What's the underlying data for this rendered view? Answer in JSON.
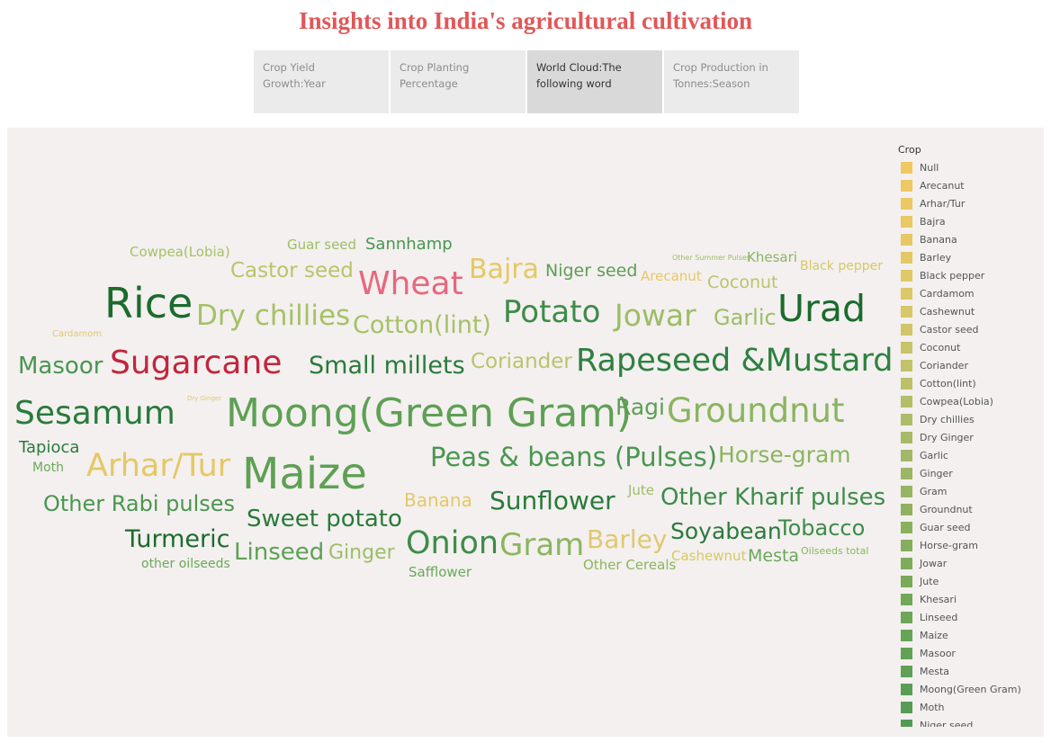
{
  "page_title": "Insights into India's agricultural cultivation",
  "tabs": [
    {
      "label": "Crop Yield Growth:Year",
      "active": false
    },
    {
      "label": "Crop Planting Percentage",
      "active": false
    },
    {
      "label": "World Cloud:The following word",
      "active": true
    },
    {
      "label": "Crop Production in Tonnes:Season",
      "active": false
    }
  ],
  "chart_data": {
    "type": "word_cloud",
    "legend_title": "Crop",
    "legend_placement": "right",
    "words": [
      {
        "text": "Cowpea(Lobia)",
        "weight": 15,
        "color": "#a6c166"
      },
      {
        "text": "Guar seed",
        "weight": 15,
        "color": "#9dbd67"
      },
      {
        "text": "Sannhamp",
        "weight": 18,
        "color": "#4a9650"
      },
      {
        "text": "Other Summer Pulses",
        "weight": 8,
        "color": "#9dbd67"
      },
      {
        "text": "Khesari",
        "weight": 15,
        "color": "#8bb55e"
      },
      {
        "text": "Black pepper",
        "weight": 14,
        "color": "#d6c865"
      },
      {
        "text": "Castor seed",
        "weight": 23,
        "color": "#b8c56a"
      },
      {
        "text": "Wheat",
        "weight": 36,
        "color": "#e8677e"
      },
      {
        "text": "Bajra",
        "weight": 30,
        "color": "#e5c865"
      },
      {
        "text": "Niger seed",
        "weight": 19,
        "color": "#5e9e55"
      },
      {
        "text": "Arecanut",
        "weight": 15,
        "color": "#e5c865"
      },
      {
        "text": "Coconut",
        "weight": 19,
        "color": "#b8c56a"
      },
      {
        "text": "Rice",
        "weight": 46,
        "color": "#1c6b2d"
      },
      {
        "text": "Dry chillies",
        "weight": 31,
        "color": "#a6c166"
      },
      {
        "text": "Cotton(lint)",
        "weight": 27,
        "color": "#a6c166"
      },
      {
        "text": "Potato",
        "weight": 34,
        "color": "#3d8c49"
      },
      {
        "text": "Jowar",
        "weight": 33,
        "color": "#9dbd67"
      },
      {
        "text": "Garlic",
        "weight": 24,
        "color": "#9dbd67"
      },
      {
        "text": "Urad",
        "weight": 41,
        "color": "#1c6b2d"
      },
      {
        "text": "Cardamom",
        "weight": 10,
        "color": "#e0c870"
      },
      {
        "text": "Masoor",
        "weight": 26,
        "color": "#4a9650"
      },
      {
        "text": "Sugarcane",
        "weight": 36,
        "color": "#c0263e"
      },
      {
        "text": "Small millets",
        "weight": 27,
        "color": "#2a7a3b"
      },
      {
        "text": "Coriander",
        "weight": 23,
        "color": "#b8c56a"
      },
      {
        "text": "Rapeseed &Mustard",
        "weight": 35,
        "color": "#2f8040"
      },
      {
        "text": "Sesamum",
        "weight": 36,
        "color": "#2a7a3b"
      },
      {
        "text": "Dry Ginger",
        "weight": 7,
        "color": "#e5c865"
      },
      {
        "text": "Moong(Green Gram)",
        "weight": 44,
        "color": "#5ea054"
      },
      {
        "text": "Ragi",
        "weight": 25,
        "color": "#5e9e55"
      },
      {
        "text": "Groundnut",
        "weight": 37,
        "color": "#8bb55e"
      },
      {
        "text": "Tapioca",
        "weight": 18,
        "color": "#2a7a3b"
      },
      {
        "text": "Moth",
        "weight": 14,
        "color": "#6aa85a"
      },
      {
        "text": "Arhar/Tur",
        "weight": 35,
        "color": "#e5c865"
      },
      {
        "text": "Maize",
        "weight": 48,
        "color": "#5ea054"
      },
      {
        "text": "Peas & beans (Pulses)",
        "weight": 29,
        "color": "#4a9650"
      },
      {
        "text": "Horse-gram",
        "weight": 25,
        "color": "#8bb55e"
      },
      {
        "text": "Other Rabi pulses",
        "weight": 24,
        "color": "#4a9650"
      },
      {
        "text": "Banana",
        "weight": 20,
        "color": "#e5c865"
      },
      {
        "text": "Sunflower",
        "weight": 28,
        "color": "#2a7a3b"
      },
      {
        "text": "Jute",
        "weight": 15,
        "color": "#9dbd67"
      },
      {
        "text": "Other Kharif pulses",
        "weight": 26,
        "color": "#3d8c49"
      },
      {
        "text": "Sweet potato",
        "weight": 26,
        "color": "#2a7a3b"
      },
      {
        "text": "Turmeric",
        "weight": 27,
        "color": "#1c6b2d"
      },
      {
        "text": "Linseed",
        "weight": 26,
        "color": "#5ea054"
      },
      {
        "text": "Ginger",
        "weight": 22,
        "color": "#9dbd67"
      },
      {
        "text": "Onion",
        "weight": 35,
        "color": "#3d8c49"
      },
      {
        "text": "Gram",
        "weight": 34,
        "color": "#8bb55e"
      },
      {
        "text": "Barley",
        "weight": 28,
        "color": "#e0c870"
      },
      {
        "text": "Soyabean",
        "weight": 25,
        "color": "#2a7a3b"
      },
      {
        "text": "Tobacco",
        "weight": 24,
        "color": "#3d8c49"
      },
      {
        "text": "other oilseeds",
        "weight": 14,
        "color": "#6aa85a"
      },
      {
        "text": "Safflower",
        "weight": 15,
        "color": "#6aa85a"
      },
      {
        "text": "Other Cereals",
        "weight": 15,
        "color": "#8bb55e"
      },
      {
        "text": "Cashewnut",
        "weight": 15,
        "color": "#d6c865"
      },
      {
        "text": "Mesta",
        "weight": 19,
        "color": "#6aa85a"
      },
      {
        "text": "Oilseeds total",
        "weight": 11,
        "color": "#8bb55e"
      }
    ],
    "legend": [
      {
        "label": "Null",
        "color": "#f0c860"
      },
      {
        "label": "Arecanut",
        "color": "#eec860"
      },
      {
        "label": "Arhar/Tur",
        "color": "#ecc862"
      },
      {
        "label": "Bajra",
        "color": "#eac862"
      },
      {
        "label": "Banana",
        "color": "#e6c864"
      },
      {
        "label": "Barley",
        "color": "#e4c864"
      },
      {
        "label": "Black pepper",
        "color": "#e0c866"
      },
      {
        "label": "Cardamom",
        "color": "#dcc866"
      },
      {
        "label": "Cashewnut",
        "color": "#d6c866"
      },
      {
        "label": "Castor seed",
        "color": "#d0c668"
      },
      {
        "label": "Coconut",
        "color": "#c8c468"
      },
      {
        "label": "Coriander",
        "color": "#c2c268"
      },
      {
        "label": "Cotton(lint)",
        "color": "#bcc068"
      },
      {
        "label": "Cowpea(Lobia)",
        "color": "#b4be68"
      },
      {
        "label": "Dry chillies",
        "color": "#aebc68"
      },
      {
        "label": "Dry Ginger",
        "color": "#a8ba66"
      },
      {
        "label": "Garlic",
        "color": "#a2b866"
      },
      {
        "label": "Ginger",
        "color": "#9cb664"
      },
      {
        "label": "Gram",
        "color": "#96b462"
      },
      {
        "label": "Groundnut",
        "color": "#90b260"
      },
      {
        "label": "Guar seed",
        "color": "#8ab05e"
      },
      {
        "label": "Horse-gram",
        "color": "#84ae5c"
      },
      {
        "label": "Jowar",
        "color": "#7eac5a"
      },
      {
        "label": "Jute",
        "color": "#78aa58"
      },
      {
        "label": "Khesari",
        "color": "#72a858"
      },
      {
        "label": "Linseed",
        "color": "#6ca656"
      },
      {
        "label": "Maize",
        "color": "#66a456"
      },
      {
        "label": "Masoor",
        "color": "#62a254"
      },
      {
        "label": "Mesta",
        "color": "#5ea054"
      },
      {
        "label": "Moong(Green Gram)",
        "color": "#5a9e54"
      },
      {
        "label": "Moth",
        "color": "#569c52"
      },
      {
        "label": "Niger seed",
        "color": "#529a52"
      }
    ]
  }
}
